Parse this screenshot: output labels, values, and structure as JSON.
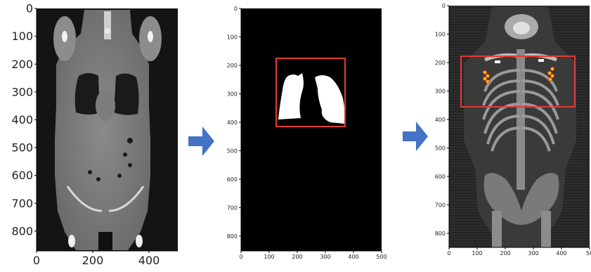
{
  "panel1": {
    "yticks": [
      "0",
      "100",
      "200",
      "300",
      "400",
      "500",
      "600",
      "700",
      "800"
    ],
    "xticks": [
      "0",
      "200",
      "400"
    ]
  },
  "panel2": {
    "yticks": [
      "0",
      "100",
      "200",
      "300",
      "400",
      "500",
      "600",
      "700",
      "800"
    ],
    "xticks": [
      "0",
      "100",
      "200",
      "300",
      "400",
      "500"
    ]
  },
  "panel3": {
    "yticks": [
      "0",
      "100",
      "200",
      "300",
      "400",
      "500",
      "600",
      "700",
      "800"
    ],
    "xticks": [
      "0",
      "100",
      "200",
      "300",
      "400",
      "50"
    ]
  },
  "colors": {
    "arrow": "#4472C4",
    "roi_box": "#E53935",
    "mask": "#ffffff",
    "hotspot": "#FFC107"
  }
}
